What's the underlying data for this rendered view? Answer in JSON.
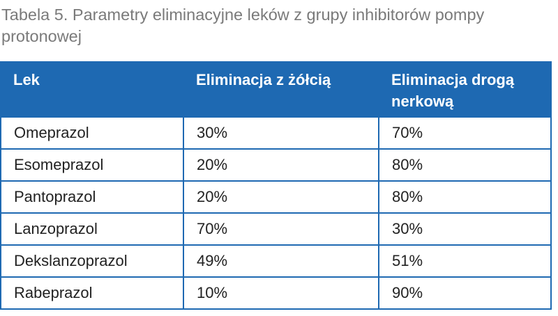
{
  "caption": "Tabela 5. Parametry eliminacyjne leków z grupy inhibitorów pompy protonowej",
  "table": {
    "headers": [
      "Lek",
      "Eliminacja z żółcią",
      "Eliminacja drogą nerkową"
    ],
    "rows": [
      [
        "Omeprazol",
        "30%",
        "70%"
      ],
      [
        "Esomeprazol",
        "20%",
        "80%"
      ],
      [
        "Pantoprazol",
        "20%",
        "80%"
      ],
      [
        "Lanzoprazol",
        "70%",
        "30%"
      ],
      [
        "Dekslanzoprazol",
        "49%",
        "51%"
      ],
      [
        "Rabeprazol",
        "10%",
        "90%"
      ]
    ]
  },
  "colors": {
    "header_background": "#1e69b2",
    "border": "#1e69b2",
    "caption_text": "#7a7a7a"
  }
}
